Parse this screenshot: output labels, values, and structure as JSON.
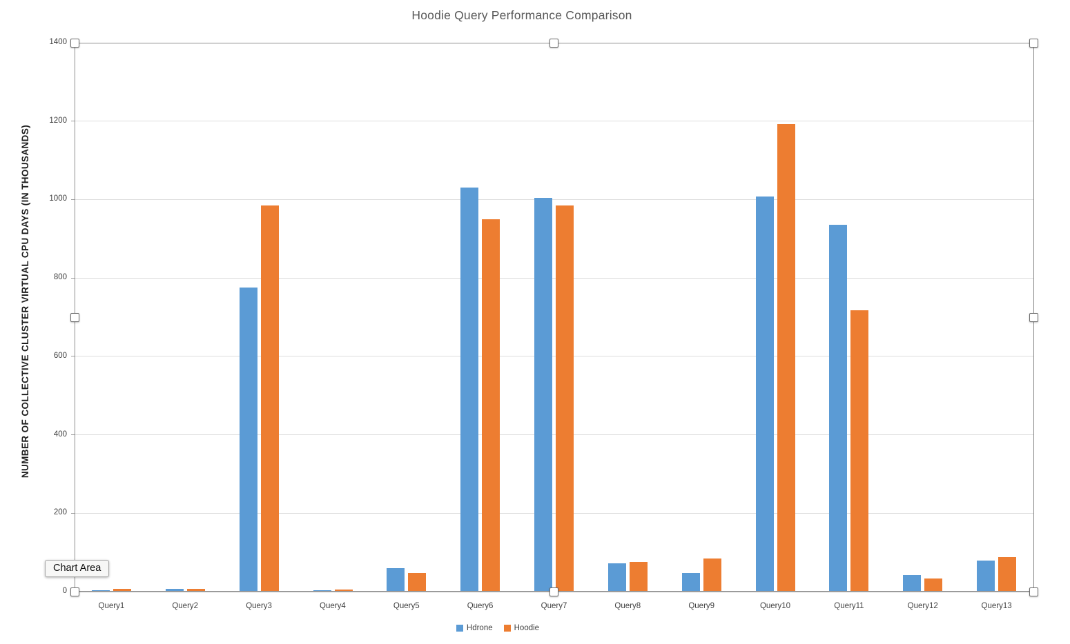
{
  "tooltip": {
    "label": "Chart Area"
  },
  "chart_data": {
    "type": "bar",
    "title": "Hoodie Query Performance Comparison",
    "ylabel": "NUMBER OF COLLECTIVE CLUSTER VIRTUAL CPU DAYS (IN THOUSANDS)",
    "xlabel": "",
    "categories": [
      "Query1",
      "Query2",
      "Query3",
      "Query4",
      "Query5",
      "Query6",
      "Query7",
      "Query8",
      "Query9",
      "Query10",
      "Query11",
      "Query12",
      "Query13"
    ],
    "series": [
      {
        "name": "Hdrone",
        "color": "#5B9BD5",
        "values": [
          4,
          8,
          775,
          3,
          60,
          1030,
          1005,
          73,
          48,
          1007,
          935,
          42,
          80
        ]
      },
      {
        "name": "Hoodie",
        "color": "#ED7D31",
        "values": [
          8,
          7,
          985,
          5,
          48,
          950,
          985,
          75,
          85,
          1192,
          718,
          33,
          88
        ]
      }
    ],
    "ylim": [
      0,
      1400
    ],
    "yticks": [
      0,
      200,
      400,
      600,
      800,
      1000,
      1200,
      1400
    ],
    "grid": true,
    "legend_position": "bottom"
  },
  "colors": {
    "gridline": "#dcdcdc",
    "axis_line": "#9b9b9b",
    "title_text": "#595959",
    "tick_text": "#404040",
    "selection_border": "#8c8c8c"
  }
}
